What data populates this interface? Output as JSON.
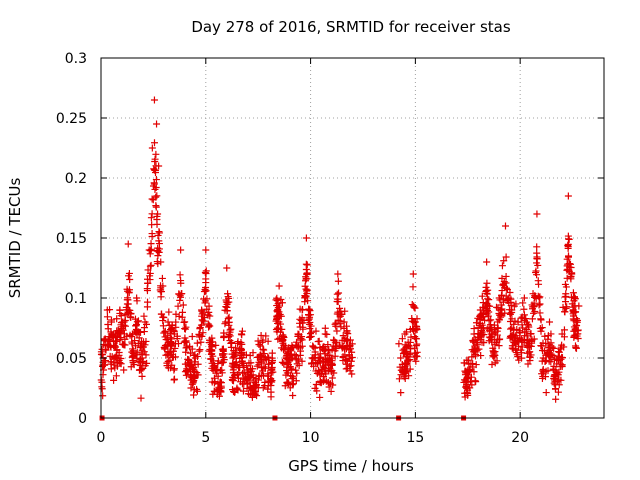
{
  "chart_data": {
    "type": "scatter",
    "title": "Day 278 of 2016, SRMTID for receiver stas",
    "xlabel": "GPS time / hours",
    "ylabel": "SRMTID / TECUs",
    "xlim": [
      0,
      24
    ],
    "ylim": [
      0,
      0.3
    ],
    "xticks": [
      0,
      5,
      10,
      15,
      20
    ],
    "yticks": [
      0,
      0.05,
      0.1,
      0.15,
      0.2,
      0.25,
      0.3
    ],
    "xtick_labels": [
      "0",
      "5",
      "10",
      "15",
      "20"
    ],
    "ytick_labels": [
      "0",
      "0.05",
      "0.1",
      "0.15",
      "0.2",
      "0.25",
      "0.3"
    ],
    "grid": true,
    "marker": "+",
    "series_color": "#e00000",
    "zero_markers_x": [
      0.05,
      8.3,
      14.2,
      17.3
    ],
    "segments": [
      {
        "name": "seg1",
        "t_start": 0.0,
        "t_end": 2.2,
        "points": [
          [
            0.1,
            0.05
          ],
          [
            0.3,
            0.09
          ],
          [
            0.5,
            0.08
          ],
          [
            0.7,
            0.07
          ],
          [
            0.9,
            0.09
          ],
          [
            1.1,
            0.08
          ],
          [
            1.3,
            0.145
          ],
          [
            1.5,
            0.07
          ],
          [
            1.7,
            0.1
          ],
          [
            1.9,
            0.06
          ],
          [
            2.1,
            0.08
          ]
        ]
      },
      {
        "name": "seg2",
        "t_start": 2.2,
        "t_end": 3.0,
        "points": [
          [
            2.3,
            0.14
          ],
          [
            2.45,
            0.225
          ],
          [
            2.55,
            0.265
          ],
          [
            2.65,
            0.245
          ],
          [
            2.7,
            0.17
          ],
          [
            2.75,
            0.21
          ],
          [
            2.85,
            0.13
          ],
          [
            2.95,
            0.11
          ]
        ]
      },
      {
        "name": "seg3",
        "t_start": 3.0,
        "t_end": 8.2,
        "points": [
          [
            3.2,
            0.08
          ],
          [
            3.5,
            0.07
          ],
          [
            3.8,
            0.14
          ],
          [
            4.1,
            0.06
          ],
          [
            4.5,
            0.05
          ],
          [
            4.8,
            0.09
          ],
          [
            5.0,
            0.14
          ],
          [
            5.3,
            0.06
          ],
          [
            5.7,
            0.03
          ],
          [
            6.0,
            0.125
          ],
          [
            6.3,
            0.05
          ],
          [
            6.7,
            0.07
          ],
          [
            7.0,
            0.04
          ],
          [
            7.3,
            0.03
          ],
          [
            7.6,
            0.06
          ],
          [
            8.0,
            0.05
          ]
        ]
      },
      {
        "name": "seg4",
        "t_start": 8.3,
        "t_end": 12.0,
        "points": [
          [
            8.5,
            0.11
          ],
          [
            8.8,
            0.06
          ],
          [
            9.1,
            0.05
          ],
          [
            9.4,
            0.07
          ],
          [
            9.6,
            0.09
          ],
          [
            9.8,
            0.15
          ],
          [
            10.1,
            0.06
          ],
          [
            10.4,
            0.05
          ],
          [
            10.7,
            0.07
          ],
          [
            11.0,
            0.05
          ],
          [
            11.3,
            0.12
          ],
          [
            11.6,
            0.08
          ],
          [
            11.9,
            0.065
          ]
        ]
      },
      {
        "name": "seg5",
        "t_start": 14.2,
        "t_end": 15.1,
        "points": [
          [
            14.3,
            0.05
          ],
          [
            14.5,
            0.07
          ],
          [
            14.7,
            0.06
          ],
          [
            14.9,
            0.12
          ],
          [
            15.0,
            0.08
          ]
        ]
      },
      {
        "name": "seg6",
        "t_start": 17.3,
        "t_end": 22.8,
        "points": [
          [
            17.5,
            0.04
          ],
          [
            17.8,
            0.07
          ],
          [
            18.1,
            0.09
          ],
          [
            18.4,
            0.13
          ],
          [
            18.7,
            0.07
          ],
          [
            19.0,
            0.1
          ],
          [
            19.3,
            0.16
          ],
          [
            19.6,
            0.09
          ],
          [
            19.9,
            0.08
          ],
          [
            20.2,
            0.1
          ],
          [
            20.5,
            0.07
          ],
          [
            20.8,
            0.17
          ],
          [
            21.1,
            0.05
          ],
          [
            21.4,
            0.08
          ],
          [
            21.7,
            0.04
          ],
          [
            22.0,
            0.07
          ],
          [
            22.3,
            0.185
          ],
          [
            22.6,
            0.1
          ]
        ]
      }
    ]
  }
}
